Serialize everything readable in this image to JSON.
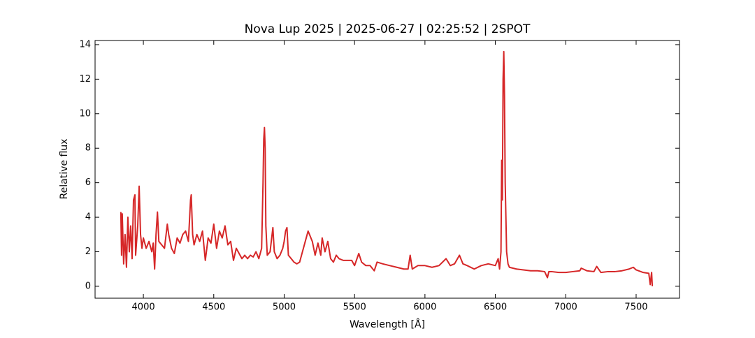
{
  "chart_data": {
    "type": "line",
    "title": "Nova Lup 2025 | 2025-06-27 | 02:25:52 | 2SPOT",
    "x_label": "Wavelength [Å]",
    "y_label": "Relative flux",
    "xlim": [
      3657,
      7808
    ],
    "ylim": [
      -0.69,
      14.24
    ],
    "xticks": [
      4000,
      4500,
      5000,
      5500,
      6000,
      6500,
      7000,
      7500
    ],
    "yticks": [
      0,
      2,
      4,
      6,
      8,
      10,
      12,
      14
    ],
    "grid": false,
    "series": [
      {
        "color": "#d62728",
        "x": [
          3840,
          3845,
          3850,
          3860,
          3870,
          3880,
          3890,
          3900,
          3910,
          3920,
          3930,
          3940,
          3945,
          3960,
          3970,
          3980,
          3990,
          4000,
          4020,
          4040,
          4060,
          4070,
          4080,
          4090,
          4100,
          4110,
          4130,
          4150,
          4170,
          4180,
          4200,
          4220,
          4240,
          4260,
          4280,
          4300,
          4320,
          4335,
          4340,
          4350,
          4360,
          4380,
          4400,
          4420,
          4440,
          4460,
          4480,
          4500,
          4520,
          4540,
          4560,
          4580,
          4600,
          4620,
          4640,
          4660,
          4680,
          4700,
          4720,
          4740,
          4760,
          4780,
          4800,
          4820,
          4840,
          4850,
          4855,
          4860,
          4865,
          4870,
          4880,
          4900,
          4920,
          4930,
          4950,
          4970,
          4990,
          5000,
          5010,
          5020,
          5030,
          5050,
          5070,
          5090,
          5110,
          5130,
          5150,
          5170,
          5180,
          5200,
          5220,
          5240,
          5260,
          5270,
          5290,
          5310,
          5330,
          5350,
          5370,
          5390,
          5420,
          5450,
          5480,
          5500,
          5530,
          5550,
          5580,
          5610,
          5640,
          5660,
          5700,
          5750,
          5800,
          5850,
          5880,
          5895,
          5910,
          5950,
          6000,
          6050,
          6100,
          6150,
          6180,
          6210,
          6245,
          6270,
          6300,
          6350,
          6400,
          6450,
          6500,
          6520,
          6530,
          6540,
          6545,
          6550,
          6555,
          6560,
          6565,
          6570,
          6580,
          6590,
          6600,
          6650,
          6700,
          6750,
          6800,
          6850,
          6870,
          6880,
          6900,
          6950,
          7000,
          7050,
          7100,
          7110,
          7150,
          7200,
          7220,
          7250,
          7300,
          7350,
          7400,
          7450,
          7480,
          7500,
          7550,
          7590,
          7600,
          7610,
          7615
        ],
        "values": [
          4.3,
          1.8,
          4.2,
          1.3,
          3.0,
          1.1,
          4.0,
          2.0,
          3.5,
          1.6,
          5.0,
          5.3,
          1.8,
          3.5,
          5.8,
          3.0,
          2.2,
          2.8,
          2.2,
          2.6,
          2.0,
          2.5,
          1.0,
          3.0,
          4.3,
          2.6,
          2.4,
          2.2,
          3.6,
          3.0,
          2.2,
          1.9,
          2.8,
          2.5,
          3.0,
          3.2,
          2.6,
          5.0,
          5.3,
          3.0,
          2.4,
          3.0,
          2.6,
          3.2,
          1.5,
          2.8,
          2.5,
          3.6,
          2.2,
          3.2,
          2.8,
          3.5,
          2.4,
          2.6,
          1.5,
          2.2,
          1.9,
          1.6,
          1.8,
          1.6,
          1.8,
          1.7,
          2.0,
          1.6,
          2.2,
          6.0,
          8.5,
          9.2,
          8.0,
          3.5,
          1.8,
          2.0,
          3.4,
          2.0,
          1.6,
          1.8,
          2.2,
          2.6,
          3.2,
          3.4,
          1.8,
          1.6,
          1.4,
          1.3,
          1.4,
          2.0,
          2.6,
          3.2,
          3.0,
          2.6,
          1.8,
          2.5,
          1.8,
          2.8,
          2.0,
          2.6,
          1.6,
          1.4,
          1.8,
          1.6,
          1.5,
          1.5,
          1.5,
          1.2,
          1.9,
          1.4,
          1.2,
          1.2,
          0.9,
          1.4,
          1.3,
          1.2,
          1.1,
          1.0,
          1.0,
          1.8,
          1.0,
          1.2,
          1.2,
          1.1,
          1.2,
          1.6,
          1.2,
          1.3,
          1.8,
          1.3,
          1.2,
          1.0,
          1.2,
          1.3,
          1.2,
          1.6,
          1.0,
          2.0,
          7.3,
          5.0,
          12.0,
          13.6,
          11.0,
          6.0,
          2.0,
          1.3,
          1.1,
          1.0,
          0.95,
          0.9,
          0.9,
          0.85,
          0.5,
          0.85,
          0.85,
          0.8,
          0.8,
          0.85,
          0.9,
          1.05,
          0.9,
          0.85,
          1.15,
          0.8,
          0.85,
          0.85,
          0.9,
          1.0,
          1.1,
          0.95,
          0.8,
          0.75,
          0.1,
          0.8,
          0
        ]
      }
    ]
  }
}
